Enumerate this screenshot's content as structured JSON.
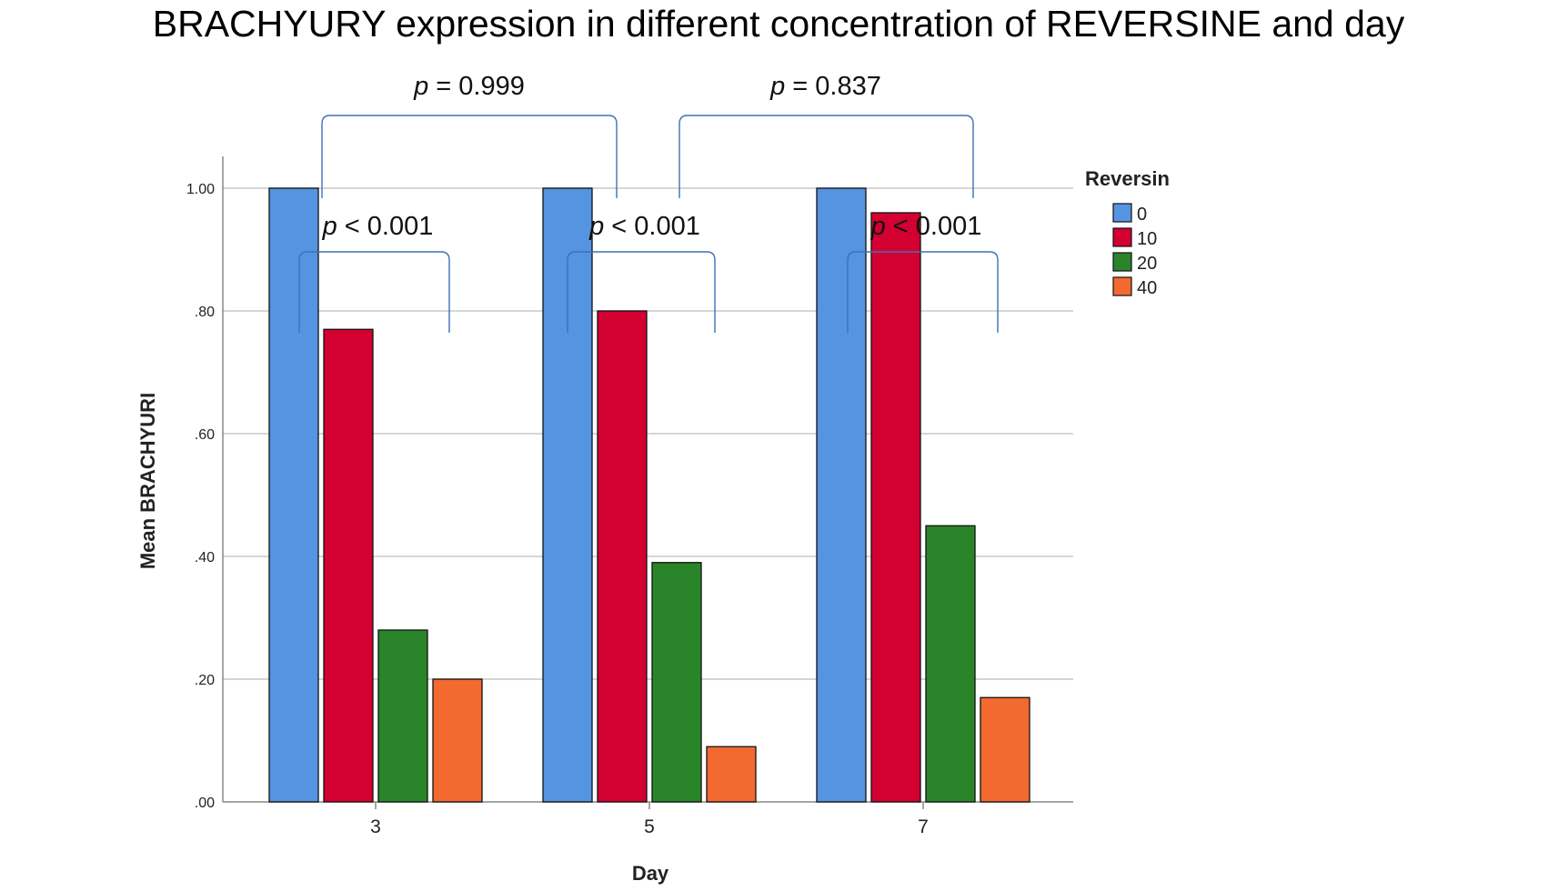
{
  "chart_data": {
    "type": "bar",
    "title": "BRACHYURY expression in different concentration of REVERSINE and day",
    "xlabel": "Day",
    "ylabel": "Mean BRACHYURI",
    "categories": [
      "3",
      "5",
      "7"
    ],
    "ylim": [
      0,
      1.0
    ],
    "yticks": [
      ".00",
      ".20",
      ".40",
      ".60",
      ".80",
      "1.00"
    ],
    "grid": true,
    "legend": {
      "title": "Reversin",
      "position": "right"
    },
    "series": [
      {
        "name": "0",
        "color": "#5594E1",
        "values": [
          1.0,
          1.0,
          1.0
        ]
      },
      {
        "name": "10",
        "color": "#D30032",
        "values": [
          0.77,
          0.8,
          0.96
        ]
      },
      {
        "name": "20",
        "color": "#2A852A",
        "values": [
          0.28,
          0.39,
          0.45
        ]
      },
      {
        "name": "40",
        "color": "#F26A30",
        "values": [
          0.2,
          0.09,
          0.17
        ]
      }
    ],
    "annotations": [
      {
        "text": "p = 0.999",
        "between": [
          "3",
          "5"
        ]
      },
      {
        "text": "p = 0.837",
        "between": [
          "5",
          "7"
        ]
      },
      {
        "text": "p < 0.001",
        "within": "3"
      },
      {
        "text": "p < 0.001",
        "within": "5"
      },
      {
        "text": "p < 0.001",
        "within": "7"
      }
    ]
  }
}
